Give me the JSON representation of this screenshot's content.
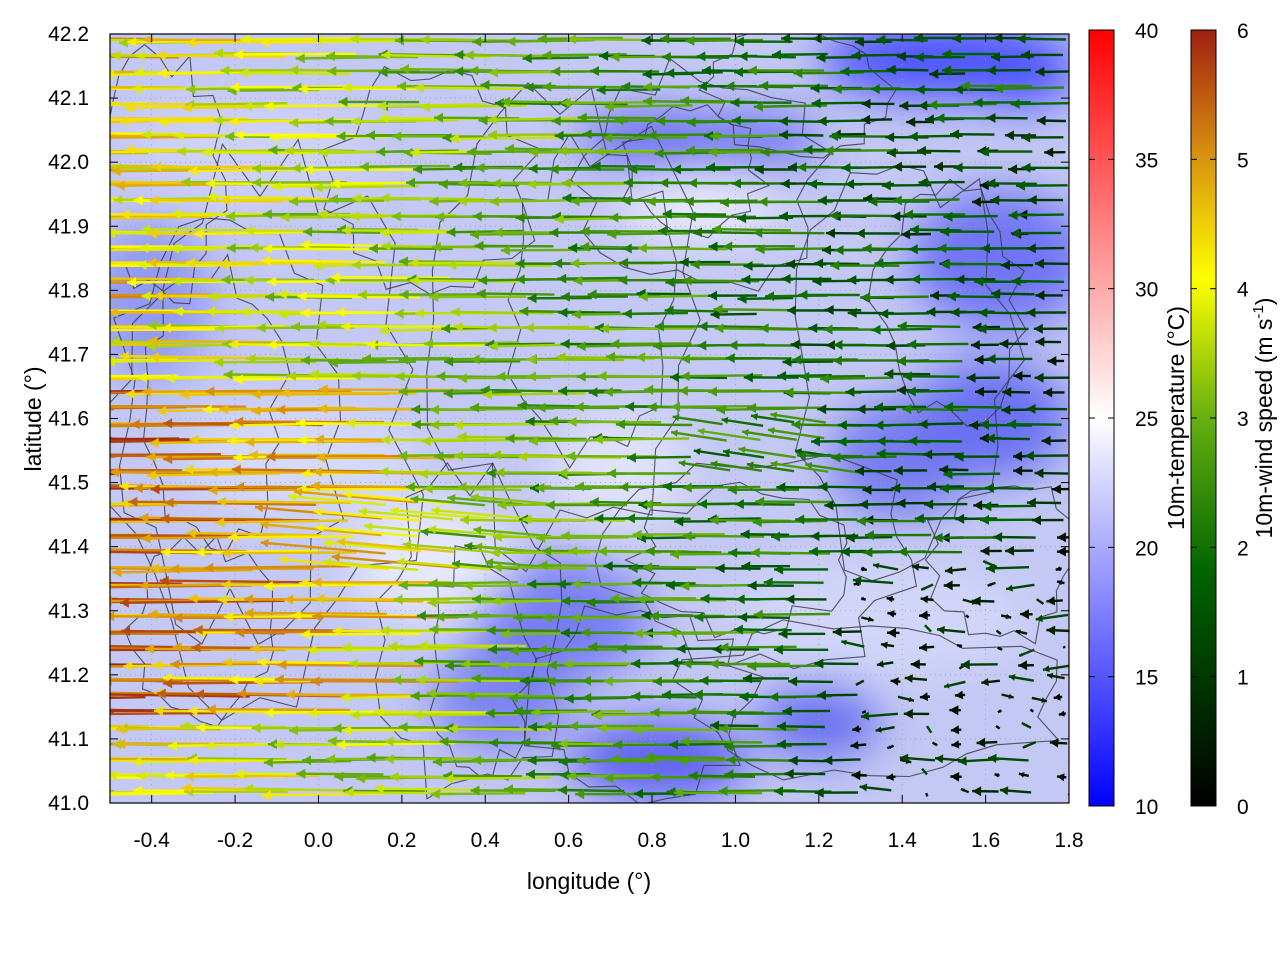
{
  "chart_data": {
    "type": "vector-field-map",
    "xlabel": "longitude (°)",
    "ylabel": "latitude (°)",
    "xlim": [
      -0.5,
      1.8
    ],
    "ylim": [
      41.0,
      42.2
    ],
    "x_ticks": [
      "-0.4",
      "-0.2",
      "0.0",
      "0.2",
      "0.4",
      "0.6",
      "0.8",
      "1.0",
      "1.2",
      "1.4",
      "1.6",
      "1.8"
    ],
    "y_ticks": [
      "41.0",
      "41.1",
      "41.2",
      "41.3",
      "41.4",
      "41.5",
      "41.6",
      "41.7",
      "41.8",
      "41.9",
      "42.0",
      "42.1",
      "42.2"
    ],
    "grid": true,
    "background_field": {
      "label": "10m-temperature (°C)",
      "range": [
        10,
        40
      ],
      "ticks": [
        "10",
        "15",
        "20",
        "25",
        "30",
        "35",
        "40"
      ],
      "palette": [
        "#0000ff",
        "#ffffff",
        "#ff0000"
      ]
    },
    "vector_field": {
      "label_main": "10m-wind speed (m s",
      "label_sup": "-1",
      "label_end": ")",
      "range": [
        0,
        6
      ],
      "ticks": [
        "0",
        "1",
        "2",
        "3",
        "4",
        "5",
        "6"
      ],
      "palette": [
        "#000000",
        "#006400",
        "#ffff00",
        "#e0a010",
        "#a02010"
      ]
    },
    "contours": "terrain"
  }
}
